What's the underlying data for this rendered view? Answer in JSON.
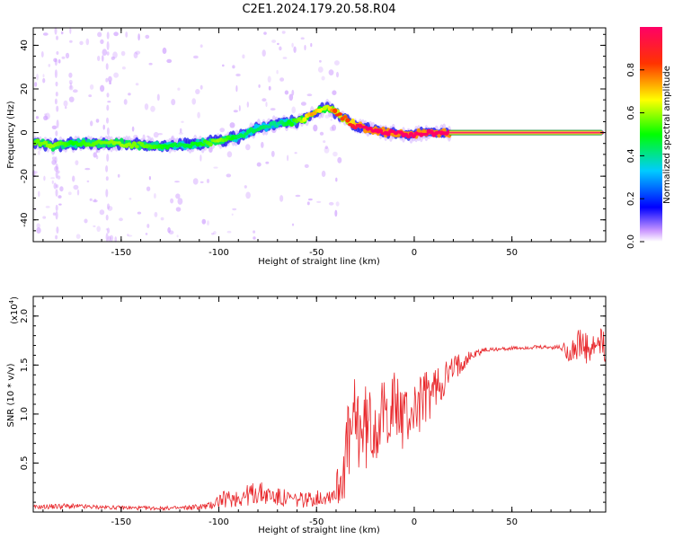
{
  "title": "C2E1.2024.179.20.58.R04",
  "colors": {
    "snr_line": "#e8262a",
    "frame": "#000000",
    "background": "#ffffff"
  },
  "chart_data": [
    {
      "type": "heatmap",
      "xlabel": "Height of straight line (km)",
      "ylabel": "Frequency (Hz)",
      "xlim": [
        -195,
        98
      ],
      "ylim": [
        -50,
        48
      ],
      "x_ticks": [
        "-150",
        "-100",
        "-50",
        "0",
        "50"
      ],
      "y_ticks": [
        "40",
        "20",
        "0",
        "-20",
        "-40"
      ],
      "colorbar": {
        "label": "Normalized spectral amplitude",
        "ticks": [
          "0.0",
          "0.2",
          "0.4",
          "0.6",
          "0.8"
        ],
        "range": [
          0,
          1
        ]
      },
      "ridge": {
        "description_values": "dominant frequency (Hz) vs height (km)",
        "x": [
          -195,
          -185,
          -175,
          -165,
          -150,
          -135,
          -120,
          -110,
          -100,
          -90,
          -80,
          -70,
          -60,
          -52,
          -45,
          -40,
          -35,
          -30,
          -25,
          -20,
          -15,
          -10,
          -5,
          0,
          5,
          10,
          15,
          20,
          30,
          40,
          50,
          60,
          70,
          80,
          90,
          96
        ],
        "y": [
          -4,
          -6,
          -5,
          -5,
          -5,
          -6,
          -6,
          -5,
          -4,
          -2,
          2,
          4,
          5,
          8,
          12,
          9,
          6,
          3,
          2,
          1,
          0,
          0,
          -1,
          -1,
          0,
          0,
          0,
          0,
          0,
          0,
          0,
          0,
          0,
          0,
          0,
          0
        ],
        "amplitude": [
          0.55,
          0.6,
          0.5,
          0.55,
          0.6,
          0.55,
          0.45,
          0.5,
          0.6,
          0.45,
          0.45,
          0.4,
          0.55,
          0.75,
          0.6,
          0.85,
          0.8,
          0.95,
          1.0,
          1.0,
          1.0,
          1.0,
          1.0,
          1.0,
          1.0,
          1.0,
          1.0,
          1.0,
          1.0,
          1.0,
          1.0,
          1.0,
          1.0,
          1.0,
          1.0,
          1.0
        ]
      }
    },
    {
      "type": "line",
      "xlabel": "Height of straight line (km)",
      "ylabel": "SNR (10 * v/v)",
      "yscale_label": "(x10",
      "yscale_exponent": "4",
      "yscale_suffix": ")",
      "xlim": [
        -195,
        98
      ],
      "ylim": [
        0,
        2.2
      ],
      "x_ticks": [
        "-150",
        "-100",
        "-50",
        "0",
        "50"
      ],
      "y_ticks": [
        "0.5",
        "1.0",
        "1.5",
        "2.0"
      ],
      "series": [
        {
          "x": [
            -195,
            -180,
            -160,
            -140,
            -120,
            -105,
            -100,
            -90,
            -80,
            -70,
            -60,
            -50,
            -42,
            -38,
            -35,
            -30,
            -25,
            -20,
            -15,
            -10,
            -5,
            0,
            5,
            10,
            15,
            20,
            25,
            30,
            35,
            40,
            50,
            60,
            70,
            75,
            80,
            85,
            90,
            95,
            98
          ],
          "y": [
            0.05,
            0.06,
            0.05,
            0.04,
            0.04,
            0.06,
            0.12,
            0.15,
            0.2,
            0.15,
            0.12,
            0.14,
            0.18,
            0.3,
            0.6,
            0.9,
            0.85,
            0.9,
            1.0,
            1.1,
            0.95,
            1.05,
            1.15,
            1.25,
            1.35,
            1.45,
            1.55,
            1.6,
            1.65,
            1.66,
            1.67,
            1.68,
            1.68,
            1.68,
            1.65,
            1.7,
            1.62,
            1.72,
            1.65
          ],
          "noise": [
            0.02,
            0.03,
            0.02,
            0.02,
            0.02,
            0.04,
            0.08,
            0.1,
            0.12,
            0.1,
            0.08,
            0.08,
            0.1,
            0.25,
            0.45,
            0.5,
            0.45,
            0.4,
            0.35,
            0.35,
            0.35,
            0.3,
            0.3,
            0.25,
            0.2,
            0.15,
            0.1,
            0.05,
            0.03,
            0.02,
            0.02,
            0.02,
            0.02,
            0.03,
            0.15,
            0.2,
            0.15,
            0.2,
            0.15
          ]
        }
      ]
    }
  ]
}
